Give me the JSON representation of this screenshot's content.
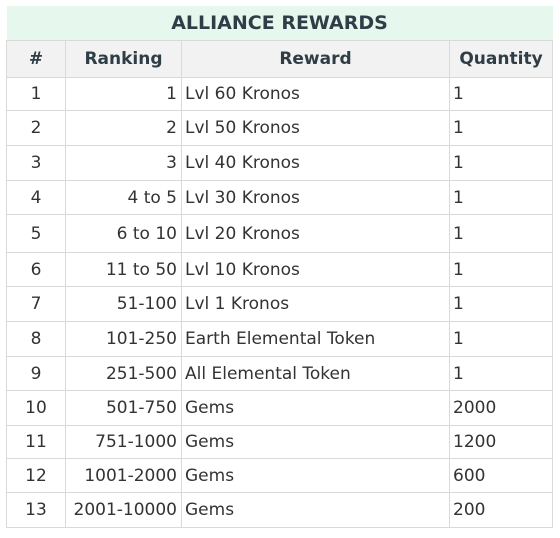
{
  "title": "ALLIANCE REWARDS",
  "headers": {
    "num": "#",
    "ranking": "Ranking",
    "reward": "Reward",
    "quantity": "Quantity"
  },
  "rows": [
    {
      "num": "1",
      "ranking": "1",
      "reward": "Lvl 60 Kronos",
      "quantity": "1"
    },
    {
      "num": "2",
      "ranking": "2",
      "reward": "Lvl 50 Kronos",
      "quantity": "1"
    },
    {
      "num": "3",
      "ranking": "3",
      "reward": "Lvl 40 Kronos",
      "quantity": "1"
    },
    {
      "num": "4",
      "ranking": "4 to 5",
      "reward": "Lvl 30 Kronos",
      "quantity": "1"
    },
    {
      "num": "5",
      "ranking": "6 to 10",
      "reward": "Lvl 20 Kronos",
      "quantity": "1"
    },
    {
      "num": "6",
      "ranking": "11 to 50",
      "reward": "Lvl 10 Kronos",
      "quantity": "1"
    },
    {
      "num": "7",
      "ranking": "51-100",
      "reward": "Lvl 1 Kronos",
      "quantity": "1"
    },
    {
      "num": "8",
      "ranking": "101-250",
      "reward": "Earth Elemental Token",
      "quantity": "1"
    },
    {
      "num": "9",
      "ranking": "251-500",
      "reward": "All Elemental Token",
      "quantity": "1"
    },
    {
      "num": "10",
      "ranking": "501-750",
      "reward": "Gems",
      "quantity": "2000"
    },
    {
      "num": "11",
      "ranking": "751-1000",
      "reward": "Gems",
      "quantity": "1200"
    },
    {
      "num": "12",
      "ranking": "1001-2000",
      "reward": "Gems",
      "quantity": "600"
    },
    {
      "num": "13",
      "ranking": "2001-10000",
      "reward": "Gems",
      "quantity": "200"
    }
  ]
}
